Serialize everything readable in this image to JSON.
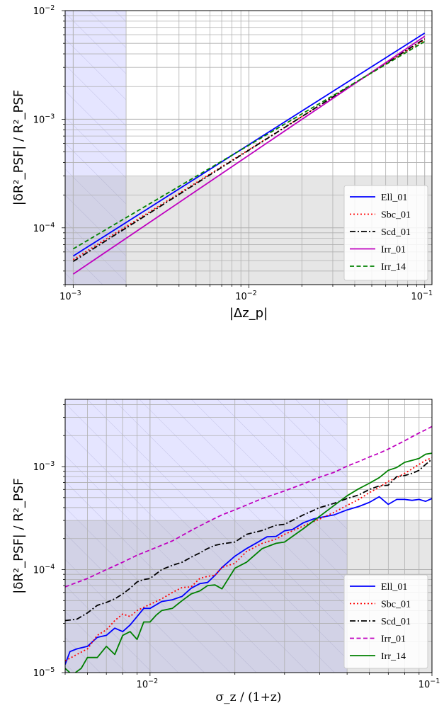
{
  "chart_data": [
    {
      "type": "line",
      "xscale": "log",
      "yscale": "log",
      "xlim": [
        0.0009,
        0.11
      ],
      "ylim": [
        3e-05,
        0.01
      ],
      "xticks": [
        {
          "value": 0.001,
          "mant": "10",
          "exp": "−3"
        },
        {
          "value": 0.01,
          "mant": "10",
          "exp": "−2"
        },
        {
          "value": 0.1,
          "mant": "10",
          "exp": "−1"
        }
      ],
      "yticks": [
        {
          "value": 0.0001,
          "mant": "10",
          "exp": "−4"
        },
        {
          "value": 0.001,
          "mant": "10",
          "exp": "−3"
        },
        {
          "value": 0.01,
          "mant": "10",
          "exp": "−2"
        }
      ],
      "xlabel": "|Δz_p|",
      "ylabel": "|δR²_PSF| / R²_PSF",
      "grid": true,
      "legend_position": "lower-right",
      "shaded_regions": [
        {
          "kind": "x-band",
          "x": [
            0.0009,
            0.002
          ],
          "color": "#8a8aff",
          "hatched": true
        },
        {
          "kind": "y-band",
          "y": [
            3e-05,
            0.0003
          ],
          "color": "#9a9a9a"
        }
      ],
      "series": [
        {
          "name": "Ell_01",
          "color": "#0000ff",
          "dash": "solid",
          "x": [
            0.001,
            0.1
          ],
          "y": [
            5.5e-05,
            0.0062
          ]
        },
        {
          "name": "Sbc_01",
          "color": "#ff0000",
          "dash": "dotted",
          "x": [
            0.001,
            0.1
          ],
          "y": [
            5.1e-05,
            0.0054
          ]
        },
        {
          "name": "Scd_01",
          "color": "#000000",
          "dash": "dashdot",
          "x": [
            0.001,
            0.1
          ],
          "y": [
            4.9e-05,
            0.0055
          ]
        },
        {
          "name": "Irr_01",
          "color": "#bf00bf",
          "dash": "solid",
          "x": [
            0.001,
            0.1
          ],
          "y": [
            3.75e-05,
            0.0058
          ]
        },
        {
          "name": "Irr_14",
          "color": "#008000",
          "dash": "dashed",
          "x": [
            0.001,
            0.1
          ],
          "y": [
            6.4e-05,
            0.0052
          ]
        }
      ]
    },
    {
      "type": "line",
      "xscale": "log",
      "yscale": "log",
      "xlim": [
        0.005,
        0.1
      ],
      "ylim": [
        1e-05,
        0.0045
      ],
      "xticks": [
        {
          "value": 0.01,
          "mant": "10",
          "exp": "−2"
        },
        {
          "value": 0.1,
          "mant": "10",
          "exp": "−1"
        }
      ],
      "yticks": [
        {
          "value": 1e-05,
          "mant": "10",
          "exp": "−5"
        },
        {
          "value": 0.0001,
          "mant": "10",
          "exp": "−4"
        },
        {
          "value": 0.001,
          "mant": "10",
          "exp": "−3"
        }
      ],
      "xlabel": "σ_z / (1+z)",
      "ylabel": "|δR²_PSF| / R²_PSF",
      "grid": true,
      "legend_position": "lower-right",
      "shaded_regions": [
        {
          "kind": "x-band",
          "x": [
            0.005,
            0.05
          ],
          "color": "#8a8aff",
          "hatched": true
        },
        {
          "kind": "y-band",
          "y": [
            1e-05,
            0.0003
          ],
          "color": "#9a9a9a"
        }
      ],
      "series": [
        {
          "name": "Ell_01",
          "color": "#0000ff",
          "dash": "solid",
          "x": [
            0.005,
            0.0052,
            0.0055,
            0.006,
            0.0065,
            0.007,
            0.0075,
            0.008,
            0.0085,
            0.009,
            0.0095,
            0.01,
            0.011,
            0.012,
            0.013,
            0.014,
            0.015,
            0.016,
            0.017,
            0.018,
            0.02,
            0.022,
            0.024,
            0.026,
            0.028,
            0.03,
            0.032,
            0.035,
            0.038,
            0.04,
            0.045,
            0.05,
            0.055,
            0.06,
            0.065,
            0.07,
            0.075,
            0.08,
            0.085,
            0.09,
            0.095,
            0.1
          ],
          "y": [
            1.2e-05,
            1.6e-05,
            1.7e-05,
            1.8e-05,
            2.2e-05,
            2.3e-05,
            2.7e-05,
            2.5e-05,
            2.9e-05,
            3.5e-05,
            4.2e-05,
            4.2e-05,
            4.9e-05,
            5.1e-05,
            5.5e-05,
            6.6e-05,
            7.3e-05,
            7.5e-05,
            8.8e-05,
            0.000105,
            0.000135,
            0.00016,
            0.000183,
            0.000208,
            0.00021,
            0.000238,
            0.000245,
            0.000285,
            0.00031,
            0.00032,
            0.00034,
            0.00038,
            0.00041,
            0.00045,
            0.00051,
            0.00043,
            0.00048,
            0.00048,
            0.00047,
            0.00048,
            0.00046,
            0.00049
          ]
        },
        {
          "name": "Sbc_01",
          "color": "#ff0000",
          "dash": "dotted",
          "x": [
            0.005,
            0.0055,
            0.006,
            0.0065,
            0.007,
            0.0075,
            0.008,
            0.0085,
            0.009,
            0.0095,
            0.01,
            0.011,
            0.012,
            0.013,
            0.014,
            0.015,
            0.016,
            0.017,
            0.018,
            0.02,
            0.022,
            0.025,
            0.028,
            0.03,
            0.035,
            0.04,
            0.045,
            0.05,
            0.055,
            0.06,
            0.065,
            0.07,
            0.075,
            0.08,
            0.085,
            0.09,
            0.095,
            0.1
          ],
          "y": [
            1.3e-05,
            1.5e-05,
            1.7e-05,
            2.3e-05,
            2.6e-05,
            3.2e-05,
            3.7e-05,
            3.5e-05,
            4e-05,
            4.3e-05,
            4.6e-05,
            5.2e-05,
            6e-05,
            6.7e-05,
            6.8e-05,
            8.2e-05,
            8.6e-05,
            8.8e-05,
            0.000105,
            0.000115,
            0.00015,
            0.00018,
            0.000198,
            0.00022,
            0.000265,
            0.00031,
            0.00036,
            0.00042,
            0.00048,
            0.00056,
            0.00063,
            0.00072,
            0.00078,
            0.00086,
            0.00095,
            0.00105,
            0.00115,
            0.00122
          ]
        },
        {
          "name": "Scd_01",
          "color": "#000000",
          "dash": "dashdot",
          "x": [
            0.005,
            0.0055,
            0.006,
            0.0065,
            0.007,
            0.0075,
            0.008,
            0.0085,
            0.009,
            0.0095,
            0.01,
            0.011,
            0.012,
            0.013,
            0.014,
            0.015,
            0.016,
            0.017,
            0.018,
            0.02,
            0.022,
            0.025,
            0.028,
            0.03,
            0.035,
            0.04,
            0.045,
            0.05,
            0.055,
            0.06,
            0.065,
            0.07,
            0.075,
            0.08,
            0.085,
            0.09,
            0.095,
            0.1
          ],
          "y": [
            3.2e-05,
            3.3e-05,
            3.8e-05,
            4.5e-05,
            4.8e-05,
            5.2e-05,
            5.8e-05,
            6.6e-05,
            7.6e-05,
            8e-05,
            8.2e-05,
            0.0001,
            0.00011,
            0.000118,
            0.000132,
            0.000145,
            0.00016,
            0.000172,
            0.000178,
            0.000185,
            0.00022,
            0.00024,
            0.00027,
            0.000275,
            0.00034,
            0.0004,
            0.00044,
            0.00049,
            0.00053,
            0.0006,
            0.00065,
            0.00066,
            0.0008,
            0.00082,
            0.00086,
            0.00092,
            0.00105,
            0.00118
          ]
        },
        {
          "name": "Irr_01",
          "color": "#bf00bf",
          "dash": "dashed",
          "x": [
            0.005,
            0.006,
            0.007,
            0.008,
            0.009,
            0.01,
            0.012,
            0.014,
            0.016,
            0.018,
            0.02,
            0.025,
            0.03,
            0.035,
            0.04,
            0.045,
            0.05,
            0.055,
            0.06,
            0.065,
            0.07,
            0.075,
            0.08,
            0.085,
            0.09,
            0.095,
            0.1
          ],
          "y": [
            6.8e-05,
            8.2e-05,
            0.0001,
            0.000118,
            0.000138,
            0.000155,
            0.00019,
            0.00024,
            0.00029,
            0.00034,
            0.00038,
            0.00049,
            0.00058,
            0.00068,
            0.00079,
            0.00088,
            0.00101,
            0.00112,
            0.00124,
            0.00135,
            0.00148,
            0.00163,
            0.00178,
            0.00195,
            0.00212,
            0.00228,
            0.00245
          ]
        },
        {
          "name": "Irr_14",
          "color": "#008000",
          "dash": "solid",
          "x": [
            0.005,
            0.0053,
            0.0057,
            0.006,
            0.0065,
            0.007,
            0.0075,
            0.008,
            0.0085,
            0.009,
            0.0095,
            0.01,
            0.0105,
            0.011,
            0.012,
            0.013,
            0.014,
            0.015,
            0.016,
            0.017,
            0.018,
            0.02,
            0.022,
            0.025,
            0.028,
            0.03,
            0.035,
            0.04,
            0.045,
            0.05,
            0.055,
            0.06,
            0.065,
            0.07,
            0.075,
            0.08,
            0.085,
            0.09,
            0.095,
            0.1
          ],
          "y": [
            1.1e-05,
            9.5e-06,
            1.1e-05,
            1.4e-05,
            1.4e-05,
            1.8e-05,
            1.5e-05,
            2.3e-05,
            2.5e-05,
            2.1e-05,
            3.1e-05,
            3.1e-05,
            3.6e-05,
            4e-05,
            4.2e-05,
            5e-05,
            5.8e-05,
            6.2e-05,
            7e-05,
            7.1e-05,
            6.5e-05,
            0.000103,
            0.000118,
            0.00016,
            0.00018,
            0.000185,
            0.00025,
            0.00033,
            0.00042,
            0.00052,
            0.00061,
            0.00069,
            0.00078,
            0.00092,
            0.00098,
            0.0011,
            0.00115,
            0.0012,
            0.00132,
            0.00135
          ]
        }
      ]
    }
  ]
}
